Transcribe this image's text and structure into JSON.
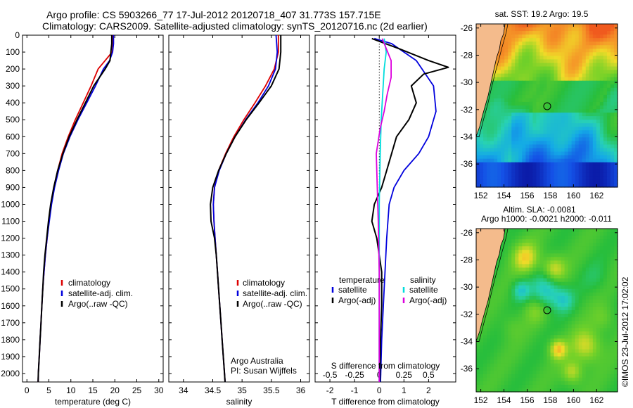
{
  "header": {
    "line1": "Argo profile: CS 5903266_77 17-Jul-2012 20120718_407 31.773S 157.715E",
    "line2": "Climatology: CARS2009. Satellite-adjusted climatology: synTS_20120716.nc (2d earlier)"
  },
  "colors": {
    "clim": "#dd0000",
    "sat": "#0000dd",
    "argo": "#000000",
    "sal_sat": "#00dddd",
    "sal_argo": "#dd00dd",
    "land": "#f4bb8c"
  },
  "chart_data": [
    {
      "type": "line",
      "name": "temperature-profile",
      "xlabel": "temperature (deg C)",
      "ylabel": "",
      "xlim": [
        -1,
        31
      ],
      "ylim": [
        2050,
        0
      ],
      "xticks": [
        0,
        5,
        10,
        15,
        20,
        25,
        30
      ],
      "yticks": [
        0,
        100,
        200,
        300,
        400,
        500,
        600,
        700,
        800,
        900,
        1000,
        1100,
        1200,
        1300,
        1400,
        1500,
        1600,
        1700,
        1800,
        1900,
        2000
      ],
      "legend": {
        "position": "center-right",
        "entries": [
          "climatology",
          "satellite-adj. clim.",
          "Argo(..raw -QC)"
        ]
      },
      "series": [
        {
          "name": "climatology",
          "color": "clim",
          "points": [
            [
              19.6,
              0
            ],
            [
              19.6,
              50
            ],
            [
              19.4,
              100
            ],
            [
              17.8,
              150
            ],
            [
              16.2,
              200
            ],
            [
              14.6,
              300
            ],
            [
              12.8,
              400
            ],
            [
              11.0,
              500
            ],
            [
              9.4,
              600
            ],
            [
              8.0,
              700
            ],
            [
              7.0,
              800
            ],
            [
              6.2,
              900
            ],
            [
              5.5,
              1000
            ],
            [
              5.0,
              1100
            ],
            [
              4.6,
              1200
            ],
            [
              4.2,
              1300
            ],
            [
              3.9,
              1400
            ],
            [
              3.6,
              1500
            ],
            [
              3.4,
              1600
            ],
            [
              3.2,
              1700
            ],
            [
              3.0,
              1800
            ],
            [
              2.8,
              1900
            ],
            [
              2.6,
              2000
            ],
            [
              2.55,
              2050
            ]
          ]
        },
        {
          "name": "satellite-adj. clim.",
          "color": "sat",
          "points": [
            [
              19.7,
              0
            ],
            [
              19.7,
              50
            ],
            [
              19.5,
              100
            ],
            [
              18.8,
              150
            ],
            [
              17.4,
              200
            ],
            [
              15.6,
              300
            ],
            [
              13.6,
              400
            ],
            [
              11.6,
              500
            ],
            [
              9.8,
              600
            ],
            [
              8.3,
              700
            ],
            [
              7.2,
              800
            ],
            [
              6.3,
              900
            ],
            [
              5.6,
              1000
            ],
            [
              5.1,
              1100
            ],
            [
              4.6,
              1200
            ],
            [
              4.2,
              1300
            ],
            [
              3.9,
              1400
            ],
            [
              3.6,
              1500
            ],
            [
              3.4,
              1600
            ],
            [
              3.2,
              1700
            ],
            [
              3.0,
              1800
            ],
            [
              2.8,
              1900
            ],
            [
              2.6,
              2000
            ],
            [
              2.55,
              2050
            ]
          ]
        },
        {
          "name": "Argo(..raw -QC)",
          "color": "argo",
          "points": [
            [
              19.3,
              0
            ],
            [
              19.3,
              50
            ],
            [
              19.1,
              100
            ],
            [
              18.9,
              150
            ],
            [
              17.8,
              200
            ],
            [
              15.2,
              300
            ],
            [
              13.3,
              400
            ],
            [
              11.4,
              500
            ],
            [
              9.6,
              600
            ],
            [
              8.2,
              700
            ],
            [
              7.0,
              800
            ],
            [
              6.1,
              900
            ],
            [
              5.4,
              1000
            ],
            [
              4.9,
              1100
            ],
            [
              4.5,
              1200
            ],
            [
              4.1,
              1300
            ],
            [
              3.8,
              1400
            ],
            [
              3.6,
              1500
            ],
            [
              3.4,
              1600
            ],
            [
              3.2,
              1700
            ],
            [
              3.0,
              1800
            ],
            [
              2.8,
              1900
            ],
            [
              2.6,
              2000
            ],
            [
              2.55,
              2050
            ]
          ]
        }
      ]
    },
    {
      "type": "line",
      "name": "salinity-profile",
      "xlabel": "salinity",
      "xlim": [
        33.75,
        36.15
      ],
      "ylim": [
        2050,
        0
      ],
      "xticks": [
        34,
        34.5,
        35,
        35.5,
        36
      ],
      "legend": {
        "position": "center-right",
        "entries": [
          "climatology",
          "satellite-adj. clim.",
          "Argo(..raw -QC)"
        ]
      },
      "annotation": [
        "Argo Australia",
        "PI: Susan Wijffels"
      ],
      "series": [
        {
          "name": "climatology",
          "color": "clim",
          "points": [
            [
              35.62,
              0
            ],
            [
              35.62,
              100
            ],
            [
              35.55,
              200
            ],
            [
              35.4,
              300
            ],
            [
              35.22,
              400
            ],
            [
              35.03,
              500
            ],
            [
              34.86,
              600
            ],
            [
              34.72,
              700
            ],
            [
              34.6,
              800
            ],
            [
              34.53,
              900
            ],
            [
              34.51,
              1000
            ],
            [
              34.52,
              1100
            ],
            [
              34.54,
              1200
            ],
            [
              34.56,
              1300
            ],
            [
              34.58,
              1400
            ],
            [
              34.6,
              1500
            ],
            [
              34.62,
              1600
            ],
            [
              34.64,
              1700
            ],
            [
              34.66,
              1800
            ],
            [
              34.68,
              1900
            ],
            [
              34.7,
              2000
            ],
            [
              34.71,
              2050
            ]
          ]
        },
        {
          "name": "satellite-adj. clim.",
          "color": "sat",
          "points": [
            [
              35.58,
              0
            ],
            [
              35.6,
              100
            ],
            [
              35.57,
              200
            ],
            [
              35.45,
              300
            ],
            [
              35.27,
              400
            ],
            [
              35.06,
              500
            ],
            [
              34.88,
              600
            ],
            [
              34.73,
              700
            ],
            [
              34.61,
              800
            ],
            [
              34.53,
              900
            ],
            [
              34.51,
              1000
            ],
            [
              34.52,
              1100
            ],
            [
              34.54,
              1200
            ],
            [
              34.56,
              1300
            ],
            [
              34.58,
              1400
            ],
            [
              34.6,
              1500
            ],
            [
              34.62,
              1600
            ],
            [
              34.64,
              1700
            ],
            [
              34.66,
              1800
            ],
            [
              34.68,
              1900
            ],
            [
              34.7,
              2000
            ],
            [
              34.71,
              2050
            ]
          ]
        },
        {
          "name": "Argo(..raw -QC)",
          "color": "argo",
          "points": [
            [
              35.66,
              0
            ],
            [
              35.66,
              100
            ],
            [
              35.63,
              200
            ],
            [
              35.5,
              300
            ],
            [
              35.29,
              400
            ],
            [
              35.07,
              500
            ],
            [
              34.88,
              600
            ],
            [
              34.73,
              700
            ],
            [
              34.6,
              800
            ],
            [
              34.5,
              900
            ],
            [
              34.46,
              1000
            ],
            [
              34.47,
              1100
            ],
            [
              34.53,
              1200
            ],
            [
              34.56,
              1300
            ],
            [
              34.58,
              1400
            ],
            [
              34.6,
              1500
            ],
            [
              34.62,
              1600
            ],
            [
              34.64,
              1700
            ],
            [
              34.66,
              1800
            ],
            [
              34.68,
              1900
            ],
            [
              34.7,
              2000
            ],
            [
              34.71,
              2050
            ]
          ]
        }
      ]
    },
    {
      "type": "line",
      "name": "difference-profile",
      "xlabel": "T difference from climatology",
      "xlabel_top": "S difference from climatology",
      "xlim": [
        -2.6,
        3.1
      ],
      "ylim": [
        2050,
        0
      ],
      "xticks_bottom": [
        -2,
        -1,
        0,
        1,
        2
      ],
      "xticks_top": [
        -0.5,
        -0.25,
        0,
        0.25,
        0.5
      ],
      "legend": {
        "position": "center",
        "headers": [
          "temperature",
          "salinity"
        ],
        "entries": [
          "satellite",
          "Argo(-adj)",
          "satellite",
          "Argo(-adj)"
        ]
      },
      "series": [
        {
          "name": "T satellite",
          "color": "sat",
          "points": [
            [
              -0.2,
              20
            ],
            [
              0.5,
              50
            ],
            [
              1.5,
              150
            ],
            [
              2.2,
              300
            ],
            [
              2.3,
              450
            ],
            [
              2.0,
              600
            ],
            [
              1.6,
              700
            ],
            [
              1.0,
              800
            ],
            [
              0.6,
              900
            ],
            [
              0.4,
              1000
            ],
            [
              0.3,
              1200
            ],
            [
              0.2,
              1500
            ],
            [
              0.1,
              1800
            ],
            [
              0.05,
              2050
            ]
          ]
        },
        {
          "name": "T Argo(-adj)",
          "color": "argo",
          "points": [
            [
              -0.3,
              20
            ],
            [
              0.8,
              80
            ],
            [
              2.0,
              150
            ],
            [
              2.8,
              190
            ],
            [
              1.8,
              230
            ],
            [
              1.3,
              300
            ],
            [
              1.5,
              400
            ],
            [
              1.2,
              500
            ],
            [
              0.7,
              600
            ],
            [
              0.5,
              700
            ],
            [
              0.3,
              800
            ],
            [
              0.1,
              900
            ],
            [
              -0.2,
              1000
            ],
            [
              -0.3,
              1100
            ],
            [
              -0.1,
              1200
            ],
            [
              0.1,
              1400
            ],
            [
              0.1,
              1600
            ],
            [
              0.05,
              1800
            ],
            [
              0.02,
              2050
            ]
          ]
        },
        {
          "name": "S satellite",
          "color": "sal_sat",
          "points": [
            [
              0.05,
              20
            ],
            [
              0.07,
              100
            ],
            [
              0.05,
              200
            ],
            [
              0.04,
              300
            ],
            [
              0.02,
              500
            ],
            [
              0.01,
              700
            ],
            [
              0.0,
              1000
            ],
            [
              0.0,
              1500
            ],
            [
              0.0,
              2050
            ]
          ]
        },
        {
          "name": "S Argo(-adj)",
          "color": "sal_argo",
          "points": [
            [
              0.03,
              20
            ],
            [
              0.12,
              150
            ],
            [
              0.12,
              250
            ],
            [
              0.08,
              350
            ],
            [
              0.05,
              450
            ],
            [
              0.01,
              550
            ],
            [
              -0.03,
              700
            ],
            [
              -0.02,
              900
            ],
            [
              -0.01,
              1100
            ],
            [
              0.0,
              1400
            ],
            [
              0.0,
              2050
            ]
          ]
        }
      ]
    }
  ],
  "maps": {
    "sst": {
      "title": "sat. SST: 19.2  Argo: 19.5",
      "xticks": [
        "152",
        "154",
        "156",
        "158",
        "160",
        "162"
      ],
      "yticks": [
        "-26",
        "-28",
        "-30",
        "-32",
        "-34",
        "-36"
      ],
      "float_lon": 157.715,
      "float_lat": -31.773
    },
    "sla": {
      "title1": "Altim. SLA: -0.0081",
      "title2": "Argo h1000: -0.0021  h2000: -0.011",
      "xticks": [
        "152",
        "154",
        "156",
        "158",
        "160",
        "162"
      ],
      "yticks": [
        "-26",
        "-28",
        "-30",
        "-32",
        "-34",
        "-36"
      ],
      "float_lon": 157.715,
      "float_lat": -31.773
    }
  },
  "footer": "©IMOS 23-Jul-2012 17:02:02"
}
